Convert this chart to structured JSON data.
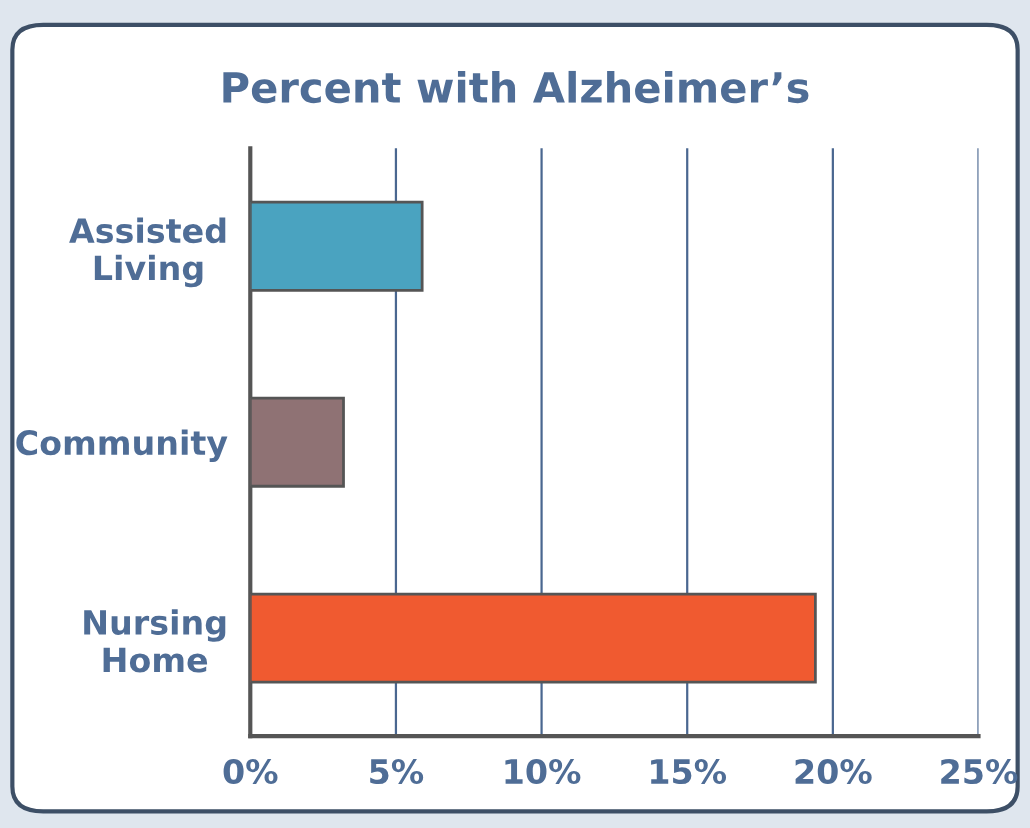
{
  "chart_data": {
    "type": "bar",
    "orientation": "horizontal",
    "title": "Percent with Alzheimer’s",
    "categories": [
      "Assisted\nLiving",
      "Community",
      "Nursing\nHome"
    ],
    "values": [
      5.9,
      3.2,
      19.4
    ],
    "colors": [
      "#4aa3c0",
      "#8f7274",
      "#f05a30"
    ],
    "xlim": [
      0,
      25
    ],
    "xticks": [
      {
        "value": 0,
        "label": "0%"
      },
      {
        "value": 5,
        "label": "5%"
      },
      {
        "value": 10,
        "label": "10%"
      },
      {
        "value": 15,
        "label": "15%"
      },
      {
        "value": 20,
        "label": "20%"
      },
      {
        "value": 25,
        "label": "25%"
      }
    ],
    "grid": "x",
    "legend": false
  }
}
